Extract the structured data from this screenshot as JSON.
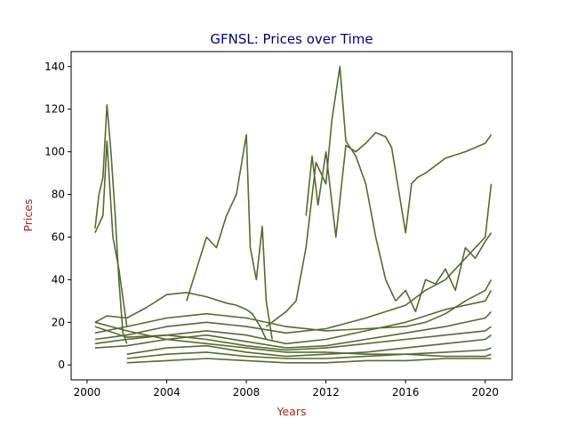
{
  "chart_data": {
    "type": "line",
    "title": "GFNSL: Prices over Time",
    "xlabel": "Years",
    "ylabel": "Prices",
    "xlim": [
      1999.2,
      2021.35
    ],
    "ylim": [
      -7,
      147
    ],
    "xticks": [
      2000,
      2004,
      2008,
      2012,
      2016,
      2020
    ],
    "xtick_labels": [
      "2000",
      "2004",
      "2008",
      "2012",
      "2016",
      "2020"
    ],
    "yticks": [
      0,
      20,
      40,
      60,
      80,
      100,
      120,
      140
    ],
    "ytick_labels": [
      "0",
      "20",
      "40",
      "60",
      "80",
      "100",
      "120",
      "140"
    ],
    "grid": false,
    "legend": "none",
    "colors": {
      "line": "#556b2f",
      "title": "#00008b",
      "axis_label": "#b22222"
    },
    "series": [
      {
        "x": [
          2000.4,
          2000.6,
          2000.8,
          2001.0,
          2001.2,
          2001.4,
          2001.6,
          2001.8,
          2002.0
        ],
        "values": [
          64,
          80,
          88,
          122,
          100,
          72,
          40,
          15,
          10
        ]
      },
      {
        "x": [
          2000.4,
          2000.8,
          2001.0,
          2001.3,
          2001.6,
          2002.0
        ],
        "values": [
          62,
          70,
          105,
          60,
          45,
          18
        ]
      },
      {
        "x": [
          2000.4,
          2001.0,
          2002.0,
          2003.0,
          2004.0,
          2005.0,
          2006.0,
          2007.0,
          2007.5,
          2008.0,
          2008.3,
          2008.7,
          2009.0
        ],
        "values": [
          20,
          23,
          22,
          27,
          33,
          34,
          32,
          29,
          28,
          26,
          24,
          18,
          12
        ]
      },
      {
        "x": [
          2005.0,
          2006.0,
          2006.5,
          2007.0,
          2007.5,
          2008.0,
          2008.2,
          2008.5,
          2008.8,
          2009.0,
          2009.3
        ],
        "values": [
          30,
          60,
          55,
          70,
          80,
          108,
          55,
          40,
          65,
          30,
          12
        ]
      },
      {
        "x": [
          2009.0,
          2010.0,
          2010.5,
          2011.0,
          2011.5,
          2012.0,
          2012.3,
          2012.7,
          2013.0,
          2013.5,
          2014.0,
          2014.5,
          2015.0,
          2015.5
        ],
        "values": [
          18,
          25,
          30,
          55,
          95,
          85,
          115,
          140,
          105,
          98,
          85,
          60,
          40,
          30
        ]
      },
      {
        "x": [
          2011.0,
          2011.3,
          2011.6,
          2012.0,
          2012.5,
          2013.0,
          2013.5,
          2014.0,
          2014.5,
          2015.0,
          2015.3,
          2015.6,
          2016.0,
          2016.3,
          2016.6,
          2017.0,
          2018.0,
          2019.0,
          2020.0,
          2020.3
        ],
        "values": [
          70,
          98,
          75,
          100,
          60,
          103,
          100,
          104,
          109,
          107,
          102,
          85,
          62,
          85,
          88,
          90,
          97,
          100,
          104,
          108
        ]
      },
      {
        "x": [
          2000.4,
          2002.0,
          2004.0,
          2006.0,
          2008.0,
          2010.0,
          2012.0,
          2014.0,
          2016.0,
          2017.0,
          2018.0,
          2019.0,
          2020.0,
          2020.3
        ],
        "values": [
          15,
          18,
          22,
          24,
          22,
          18,
          16,
          17,
          18,
          20,
          24,
          30,
          35,
          40
        ]
      },
      {
        "x": [
          2000.4,
          2002.0,
          2004.0,
          2006.0,
          2008.0,
          2010.0,
          2012.0,
          2014.0,
          2016.0,
          2017.0,
          2018.0,
          2019.0,
          2020.0,
          2020.3
        ],
        "values": [
          12,
          14,
          18,
          20,
          18,
          15,
          17,
          22,
          28,
          35,
          40,
          50,
          60,
          85
        ]
      },
      {
        "x": [
          2000.4,
          2002.0,
          2004.0,
          2006.0,
          2008.0,
          2010.0,
          2012.0,
          2014.0,
          2016.0,
          2018.0,
          2020.0,
          2020.3
        ],
        "values": [
          10,
          12,
          14,
          16,
          14,
          10,
          12,
          16,
          20,
          26,
          30,
          35
        ]
      },
      {
        "x": [
          2000.4,
          2002.0,
          2004.0,
          2006.0,
          2008.0,
          2010.0,
          2012.0,
          2014.0,
          2016.0,
          2018.0,
          2020.0,
          2020.3
        ],
        "values": [
          8,
          9,
          12,
          14,
          11,
          8,
          9,
          12,
          15,
          18,
          22,
          25
        ]
      },
      {
        "x": [
          2000.4,
          2002.0,
          2004.0,
          2006.0,
          2008.0,
          2010.0,
          2012.0,
          2014.0,
          2016.0,
          2018.0,
          2020.0,
          2020.3
        ],
        "values": [
          18,
          13,
          14,
          12,
          9,
          7,
          8,
          10,
          12,
          14,
          16,
          18
        ]
      },
      {
        "x": [
          2002.0,
          2004.0,
          2006.0,
          2008.0,
          2010.0,
          2012.0,
          2014.0,
          2016.0,
          2018.0,
          2020.0,
          2020.3
        ],
        "values": [
          5,
          8,
          9,
          6,
          4,
          5,
          6,
          8,
          10,
          12,
          14
        ]
      },
      {
        "x": [
          2002.0,
          2004.0,
          2006.0,
          2008.0,
          2010.0,
          2012.0,
          2014.0,
          2016.0,
          2018.0,
          2020.0,
          2020.3
        ],
        "values": [
          3,
          5,
          6,
          4,
          3,
          3,
          4,
          5,
          6,
          7,
          8
        ]
      },
      {
        "x": [
          2002.0,
          2004.0,
          2006.0,
          2008.0,
          2010.0,
          2012.0,
          2014.0,
          2016.0,
          2018.0,
          2020.0,
          2020.3
        ],
        "values": [
          1,
          2,
          3,
          2,
          1,
          1,
          2,
          2,
          3,
          3,
          3
        ]
      },
      {
        "x": [
          2000.4,
          2002.0,
          2004.0,
          2006.0,
          2008.0,
          2010.0,
          2012.0,
          2014.0,
          2016.0,
          2018.0,
          2020.0,
          2020.3
        ],
        "values": [
          20,
          16,
          12,
          10,
          8,
          6,
          6,
          5,
          5,
          4,
          4,
          5
        ]
      },
      {
        "x": [
          2015.5,
          2016.0,
          2016.5,
          2017.0,
          2017.5,
          2018.0,
          2018.5,
          2019.0,
          2019.5,
          2020.0,
          2020.3
        ],
        "values": [
          30,
          35,
          25,
          40,
          38,
          45,
          35,
          55,
          50,
          58,
          62
        ]
      }
    ]
  }
}
